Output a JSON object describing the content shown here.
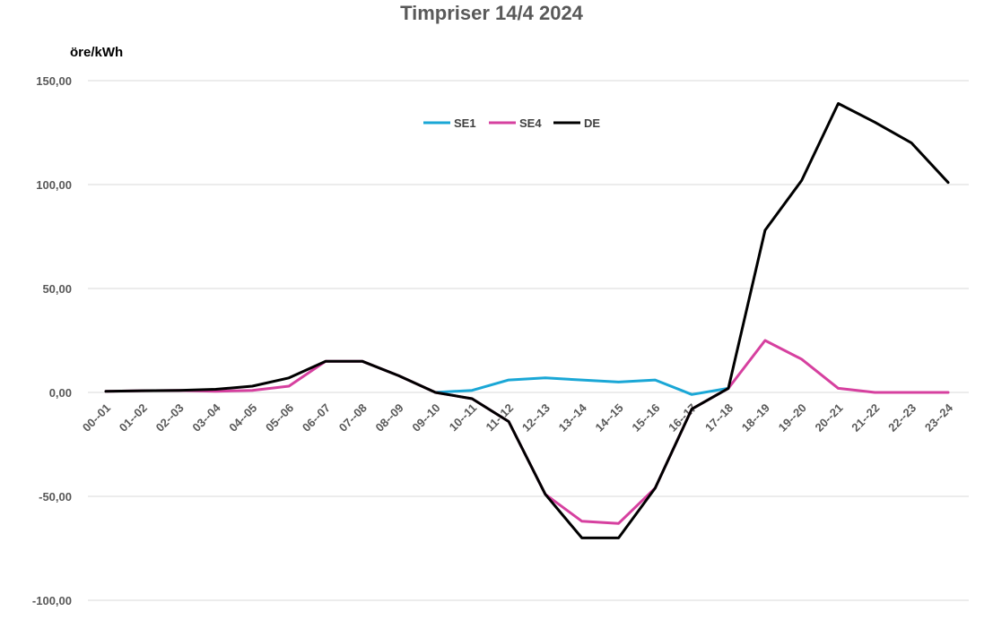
{
  "chart_data": {
    "type": "line",
    "title": "Timpriser 14/4 2024",
    "ylabel": "öre/kWh",
    "xlabel": "",
    "ylim": [
      -100,
      150
    ],
    "yticks": [
      150,
      100,
      50,
      0,
      -50,
      -100
    ],
    "ytick_labels": [
      "150,00",
      "100,00",
      "50,00",
      "0,00",
      "-50,00",
      "-100,00"
    ],
    "grid": true,
    "legend_position": "top-center",
    "categories": [
      "00--01",
      "01--02",
      "02--03",
      "03--04",
      "04--05",
      "05--06",
      "06--07",
      "07--08",
      "08--09",
      "09--10",
      "10--11",
      "11--12",
      "12--13",
      "13--14",
      "14--15",
      "15--16",
      "16--17",
      "17--18",
      "18--19",
      "19--20",
      "20--21",
      "21--22",
      "22--23",
      "23--24"
    ],
    "series": [
      {
        "name": "SE1",
        "color": "#1aa7d6",
        "values": [
          null,
          null,
          null,
          null,
          null,
          null,
          null,
          null,
          null,
          0,
          1,
          6,
          7,
          6,
          5,
          6,
          -1,
          2,
          null,
          null,
          null,
          null,
          null,
          null
        ]
      },
      {
        "name": "SE4",
        "color": "#d6409f",
        "values": [
          0.5,
          0.8,
          1,
          0.5,
          1,
          3,
          15,
          15,
          8,
          0,
          -3,
          -14,
          -49,
          -62,
          -63,
          -46,
          -8,
          2,
          25,
          16,
          2,
          0,
          0,
          0
        ]
      },
      {
        "name": "DE",
        "color": "#000000",
        "values": [
          0.5,
          0.8,
          1,
          1.5,
          3,
          7,
          15,
          15,
          8,
          0,
          -3,
          -14,
          -49,
          -70,
          -70,
          -46,
          -8,
          2,
          78,
          102,
          139,
          130,
          120,
          101
        ]
      }
    ]
  }
}
